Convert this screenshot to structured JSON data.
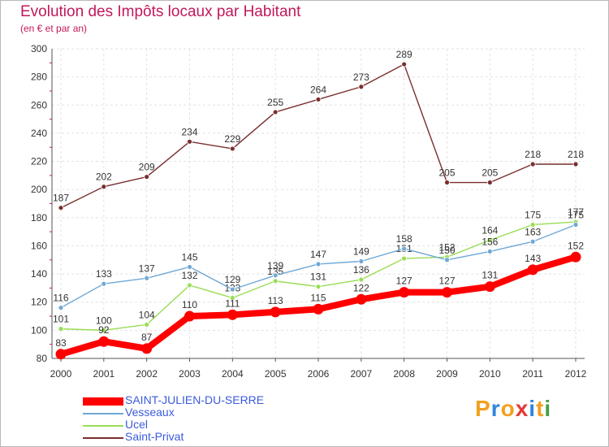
{
  "header": {
    "title": "Evolution des Impôts locaux par Habitant",
    "subtitle": "(en € et par an)"
  },
  "chart_data": {
    "type": "line",
    "title": "Evolution des Impôts locaux par Habitant",
    "subtitle": "(en € et par an)",
    "xlabel": "",
    "ylabel": "",
    "x": [
      2000,
      2001,
      2002,
      2003,
      2004,
      2005,
      2006,
      2007,
      2008,
      2009,
      2010,
      2011,
      2012
    ],
    "ylim": [
      80,
      300
    ],
    "yticks": [
      80,
      100,
      120,
      140,
      160,
      180,
      200,
      220,
      240,
      260,
      280,
      300
    ],
    "grid": true,
    "series": [
      {
        "name": "SAINT-JULIEN-DU-SERRE",
        "color": "#ff0000",
        "values": [
          83,
          92,
          87,
          110,
          111,
          113,
          115,
          122,
          127,
          127,
          131,
          143,
          152
        ]
      },
      {
        "name": "Vesseaux",
        "color": "#6fa8d6",
        "values": [
          116,
          133,
          137,
          145,
          129,
          139,
          147,
          149,
          158,
          150,
          156,
          163,
          175
        ]
      },
      {
        "name": "Ucel",
        "color": "#99dd55",
        "values": [
          101,
          100,
          104,
          132,
          123,
          135,
          131,
          136,
          151,
          152,
          164,
          175,
          177
        ]
      },
      {
        "name": "Saint-Privat",
        "color": "#7a2e2e",
        "values": [
          187,
          202,
          209,
          234,
          229,
          255,
          264,
          273,
          289,
          205,
          205,
          218,
          218
        ]
      }
    ]
  },
  "legend": [
    {
      "label": "SAINT-JULIEN-DU-SERRE",
      "color": "#ff0000"
    },
    {
      "label": "Vesseaux",
      "color": "#6fa8d6"
    },
    {
      "label": "Ucel",
      "color": "#99dd55"
    },
    {
      "label": "Saint-Privat",
      "color": "#7a2e2e"
    }
  ],
  "brand": {
    "name": "Proxiti",
    "letters": [
      "P",
      "r",
      "o",
      "x",
      "i",
      "t",
      "i"
    ],
    "colors": [
      "#f0a020",
      "#2e86de",
      "#f0a020",
      "#e53935",
      "#2e86de",
      "#f0a020",
      "#43a047"
    ]
  }
}
